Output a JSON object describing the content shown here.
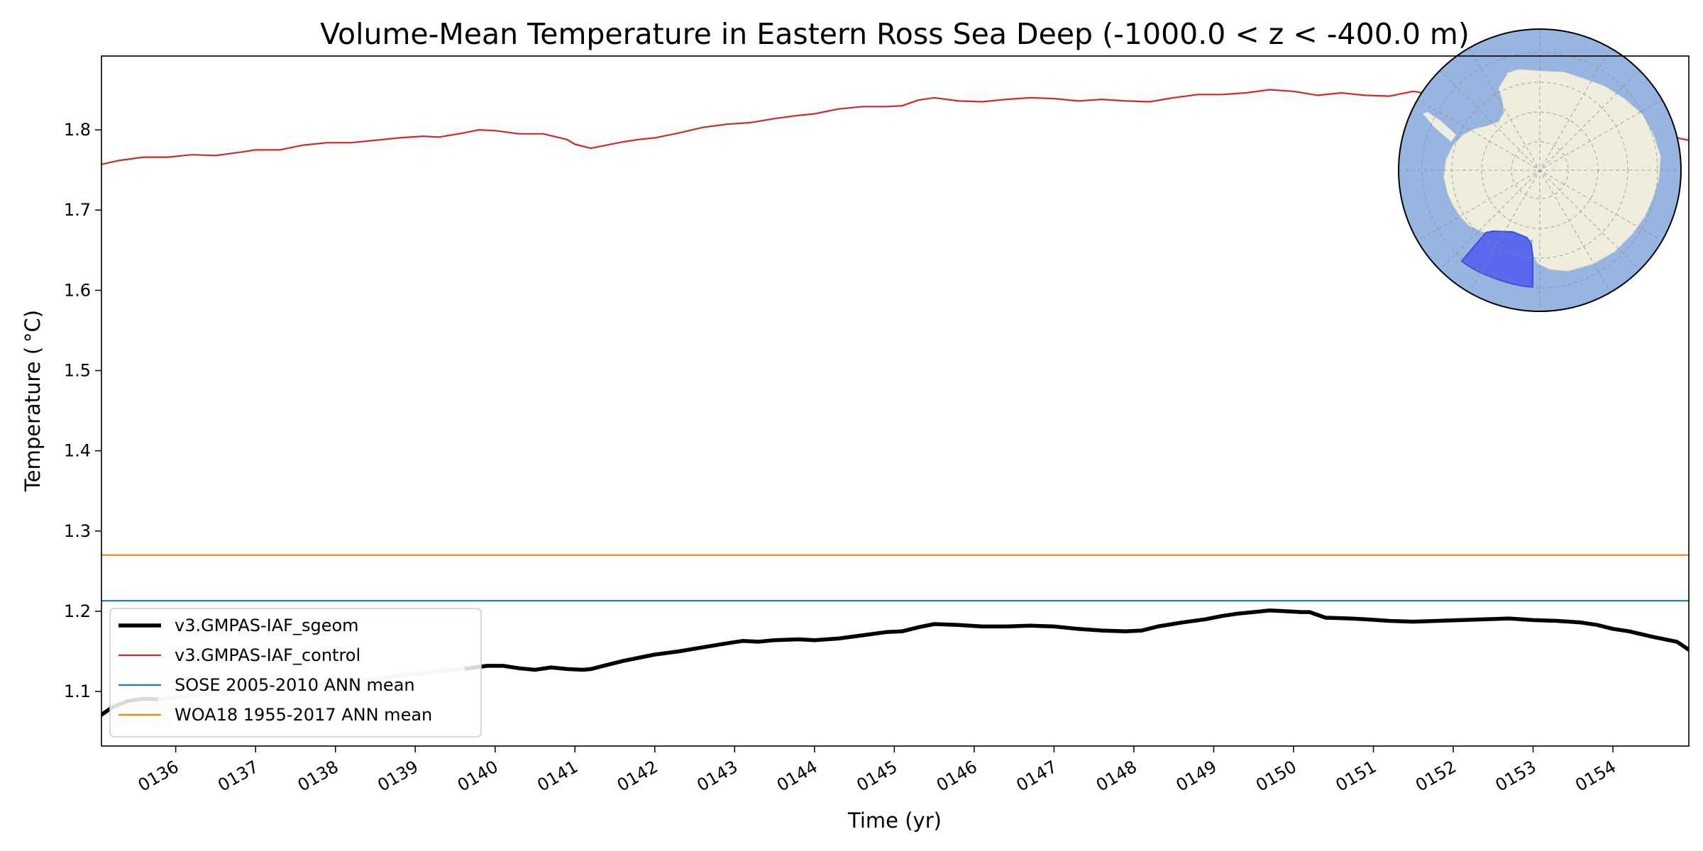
{
  "chart_data": {
    "type": "line",
    "title": "Volume-Mean Temperature in Eastern Ross Sea Deep (-1000.0 < z < -400.0 m)",
    "xlabel": "Time (yr)",
    "ylabel": "Temperature ($^\\circ$C)",
    "ylabel_display": "Temperature ( °C)",
    "xlim": [
      135.07,
      154.95
    ],
    "ylim": [
      1.032,
      1.892
    ],
    "x_ticks": [
      {
        "value": 136,
        "label": "0136"
      },
      {
        "value": 137,
        "label": "0137"
      },
      {
        "value": 138,
        "label": "0138"
      },
      {
        "value": 139,
        "label": "0139"
      },
      {
        "value": 140,
        "label": "0140"
      },
      {
        "value": 141,
        "label": "0141"
      },
      {
        "value": 142,
        "label": "0142"
      },
      {
        "value": 143,
        "label": "0143"
      },
      {
        "value": 144,
        "label": "0144"
      },
      {
        "value": 145,
        "label": "0145"
      },
      {
        "value": 146,
        "label": "0146"
      },
      {
        "value": 147,
        "label": "0147"
      },
      {
        "value": 148,
        "label": "0148"
      },
      {
        "value": 149,
        "label": "0149"
      },
      {
        "value": 150,
        "label": "0150"
      },
      {
        "value": 151,
        "label": "0151"
      },
      {
        "value": 152,
        "label": "0152"
      },
      {
        "value": 153,
        "label": "0153"
      },
      {
        "value": 154,
        "label": "0154"
      }
    ],
    "y_ticks": [
      {
        "value": 1.1,
        "label": "1.1"
      },
      {
        "value": 1.2,
        "label": "1.2"
      },
      {
        "value": 1.3,
        "label": "1.3"
      },
      {
        "value": 1.4,
        "label": "1.4"
      },
      {
        "value": 1.5,
        "label": "1.5"
      },
      {
        "value": 1.6,
        "label": "1.6"
      },
      {
        "value": 1.7,
        "label": "1.7"
      },
      {
        "value": 1.8,
        "label": "1.8"
      }
    ],
    "legend_position": "lower-left",
    "series": [
      {
        "name": "v3.GMPAS-IAF_sgeom",
        "color": "#000000",
        "style": "thick",
        "x": [
          135.07,
          135.2,
          135.4,
          135.6,
          135.8,
          136.0,
          136.2,
          136.5,
          136.8,
          137.0,
          137.3,
          137.6,
          138.0,
          138.3,
          138.6,
          139.0,
          139.3,
          139.6,
          139.9,
          140.1,
          140.3,
          140.5,
          140.7,
          140.9,
          141.1,
          141.2,
          141.4,
          141.6,
          141.8,
          142.0,
          142.3,
          142.6,
          142.9,
          143.1,
          143.3,
          143.5,
          143.8,
          144.0,
          144.3,
          144.6,
          144.9,
          145.1,
          145.3,
          145.5,
          145.8,
          146.1,
          146.4,
          146.7,
          147.0,
          147.3,
          147.6,
          147.9,
          148.1,
          148.3,
          148.6,
          148.9,
          149.1,
          149.3,
          149.5,
          149.7,
          149.9,
          150.1,
          150.2,
          150.4,
          150.7,
          150.9,
          151.2,
          151.5,
          151.8,
          152.1,
          152.4,
          152.7,
          153.0,
          153.3,
          153.6,
          153.8,
          154.0,
          154.2,
          154.5,
          154.8,
          154.95
        ],
        "y": [
          1.071,
          1.08,
          1.088,
          1.091,
          1.09,
          1.093,
          1.095,
          1.098,
          1.1,
          1.103,
          1.105,
          1.107,
          1.11,
          1.113,
          1.117,
          1.122,
          1.125,
          1.128,
          1.132,
          1.132,
          1.129,
          1.127,
          1.13,
          1.128,
          1.127,
          1.128,
          1.133,
          1.138,
          1.142,
          1.146,
          1.15,
          1.155,
          1.16,
          1.163,
          1.162,
          1.164,
          1.165,
          1.164,
          1.166,
          1.17,
          1.174,
          1.175,
          1.18,
          1.184,
          1.183,
          1.181,
          1.181,
          1.182,
          1.181,
          1.178,
          1.176,
          1.175,
          1.176,
          1.181,
          1.186,
          1.19,
          1.194,
          1.197,
          1.199,
          1.201,
          1.2,
          1.199,
          1.199,
          1.192,
          1.191,
          1.19,
          1.188,
          1.187,
          1.188,
          1.189,
          1.19,
          1.191,
          1.189,
          1.188,
          1.186,
          1.183,
          1.178,
          1.175,
          1.168,
          1.162,
          1.152
        ],
        "highlight": {
          "color": "#c8c8c8",
          "x_from": 135.7,
          "x_to": 139.8
        }
      },
      {
        "name": "v3.GMPAS-IAF_control",
        "color": "#d62728",
        "style": "thin",
        "x": [
          135.07,
          135.3,
          135.6,
          135.9,
          136.2,
          136.5,
          136.8,
          137.0,
          137.3,
          137.6,
          137.9,
          138.2,
          138.5,
          138.8,
          139.1,
          139.3,
          139.6,
          139.8,
          140.0,
          140.3,
          140.6,
          140.9,
          141.0,
          141.2,
          141.4,
          141.6,
          141.8,
          142.0,
          142.3,
          142.6,
          142.9,
          143.2,
          143.5,
          143.8,
          144.0,
          144.3,
          144.6,
          144.9,
          145.1,
          145.3,
          145.5,
          145.8,
          146.1,
          146.4,
          146.7,
          147.0,
          147.3,
          147.6,
          147.9,
          148.2,
          148.5,
          148.8,
          149.1,
          149.4,
          149.7,
          150.0,
          150.3,
          150.6,
          150.9,
          151.2,
          151.5,
          151.8,
          152.0,
          152.2,
          152.5,
          152.8,
          153.1,
          153.4,
          153.7,
          154.0,
          154.3,
          154.6,
          154.95
        ],
        "y": [
          1.757,
          1.762,
          1.766,
          1.766,
          1.769,
          1.768,
          1.772,
          1.775,
          1.775,
          1.781,
          1.784,
          1.784,
          1.787,
          1.79,
          1.792,
          1.791,
          1.796,
          1.8,
          1.799,
          1.795,
          1.795,
          1.788,
          1.782,
          1.777,
          1.781,
          1.785,
          1.788,
          1.79,
          1.796,
          1.803,
          1.807,
          1.809,
          1.814,
          1.818,
          1.82,
          1.826,
          1.829,
          1.829,
          1.83,
          1.837,
          1.84,
          1.836,
          1.835,
          1.838,
          1.84,
          1.839,
          1.836,
          1.838,
          1.836,
          1.835,
          1.84,
          1.844,
          1.844,
          1.846,
          1.85,
          1.848,
          1.843,
          1.846,
          1.843,
          1.842,
          1.848,
          1.843,
          1.843,
          1.838,
          1.834,
          1.83,
          1.826,
          1.82,
          1.815,
          1.808,
          1.8,
          1.794,
          1.787
        ]
      },
      {
        "name": "SOSE 2005-2010 ANN mean",
        "color": "#1f77b4",
        "style": "thin",
        "x": [
          135.07,
          154.95
        ],
        "y": [
          1.213,
          1.213
        ]
      },
      {
        "name": "WOA18 1955-2017 ANN mean",
        "color": "#ff7f0e",
        "style": "thin",
        "x": [
          135.07,
          154.95
        ],
        "y": [
          1.27,
          1.27
        ]
      }
    ],
    "inset_map": {
      "type": "south-polar-stereographic",
      "ocean_color": "#98b4e0",
      "land_color": "#efedde",
      "region_color": "#5a6aee",
      "region": "Eastern Ross Sea"
    }
  }
}
